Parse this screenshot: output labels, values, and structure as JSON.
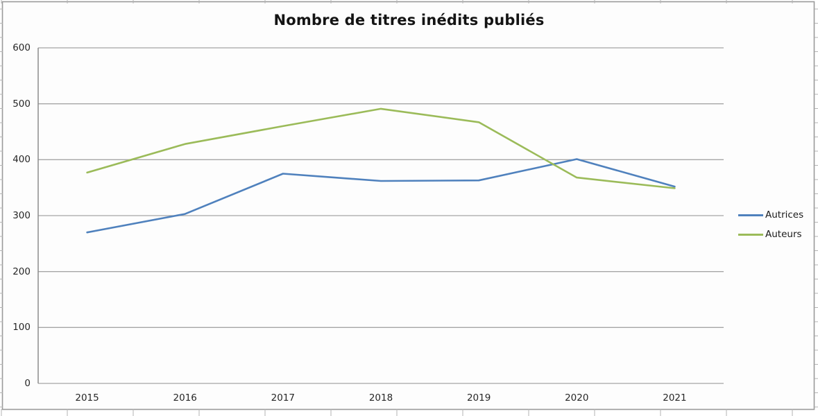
{
  "chart_data": {
    "type": "line",
    "title": "Nombre de titres inédits publiés",
    "categories": [
      "2015",
      "2016",
      "2017",
      "2018",
      "2019",
      "2020",
      "2021"
    ],
    "series": [
      {
        "name": "Autrices",
        "color": "#4F81BD",
        "values": [
          270,
          303,
          375,
          362,
          363,
          401,
          352
        ]
      },
      {
        "name": "Auteurs",
        "color": "#9BBB59",
        "values": [
          377,
          428,
          460,
          491,
          467,
          368,
          349
        ]
      }
    ],
    "xlabel": "",
    "ylabel": "",
    "ylim": [
      0,
      600
    ],
    "y_ticks": [
      0,
      100,
      200,
      300,
      400,
      500,
      600
    ],
    "grid": "horizontal",
    "legend_position": "right",
    "colors": {
      "gridline": "#a6a6a6",
      "axis": "#8c8c8c",
      "frame_border": "#9a9a9a",
      "background": "#fdfdfd"
    }
  }
}
